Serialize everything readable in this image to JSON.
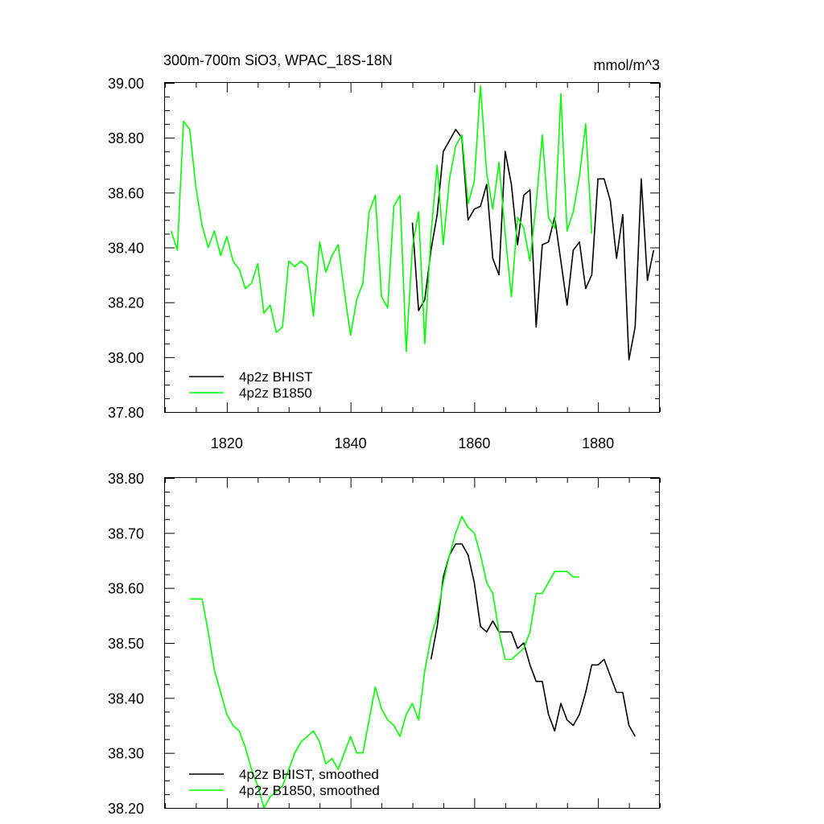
{
  "figure": {
    "title_left": "300m-700m SiO3, WPAC_18S-18N",
    "title_right": "mmol/m^3"
  },
  "colors": {
    "bhist": "#000000",
    "b1850": "#00ff00",
    "background": "#ffffff"
  },
  "chart_data": [
    {
      "type": "line",
      "title": "300m-700m SiO3, WPAC_18S-18N",
      "units": "mmol/m^3",
      "xlim": [
        1810,
        1890
      ],
      "ylim": [
        37.8,
        39.0
      ],
      "x_ticks": [
        1820,
        1840,
        1860,
        1880
      ],
      "y_ticks": [
        "37.80",
        "38.00",
        "38.20",
        "38.40",
        "38.60",
        "38.80",
        "39.00"
      ],
      "legend_position": "bottom-left",
      "series": [
        {
          "name": "4p2z BHIST",
          "color": "#000000",
          "x": [
            1850,
            1851,
            1852,
            1853,
            1854,
            1855,
            1856,
            1857,
            1858,
            1859,
            1860,
            1861,
            1862,
            1863,
            1864,
            1865,
            1866,
            1867,
            1868,
            1869,
            1870,
            1871,
            1872,
            1873,
            1874,
            1875,
            1876,
            1877,
            1878,
            1879,
            1880,
            1881,
            1882,
            1883,
            1884,
            1885,
            1886,
            1887,
            1888,
            1889
          ],
          "y": [
            38.49,
            38.17,
            38.21,
            38.39,
            38.52,
            38.75,
            38.79,
            38.83,
            38.8,
            38.5,
            38.54,
            38.55,
            38.63,
            38.36,
            38.3,
            38.75,
            38.63,
            38.41,
            38.59,
            38.61,
            38.11,
            38.41,
            38.42,
            38.51,
            38.35,
            38.19,
            38.39,
            38.42,
            38.25,
            38.3,
            38.65,
            38.65,
            38.57,
            38.36,
            38.52,
            37.99,
            38.11,
            38.65,
            38.28,
            38.39
          ]
        },
        {
          "name": "4p2z B1850",
          "color": "#00ff00",
          "x": [
            1811,
            1812,
            1813,
            1814,
            1815,
            1816,
            1817,
            1818,
            1819,
            1820,
            1821,
            1822,
            1823,
            1824,
            1825,
            1826,
            1827,
            1828,
            1829,
            1830,
            1831,
            1832,
            1833,
            1834,
            1835,
            1836,
            1837,
            1838,
            1839,
            1840,
            1841,
            1842,
            1843,
            1844,
            1845,
            1846,
            1847,
            1848,
            1849,
            1850,
            1851,
            1852,
            1853,
            1854,
            1855,
            1856,
            1857,
            1858,
            1859,
            1860,
            1861,
            1862,
            1863,
            1864,
            1865,
            1866,
            1867,
            1868,
            1869,
            1870,
            1871,
            1872,
            1873,
            1874,
            1875,
            1876,
            1877,
            1878,
            1879
          ],
          "y": [
            38.46,
            38.39,
            38.86,
            38.83,
            38.62,
            38.48,
            38.4,
            38.46,
            38.37,
            38.44,
            38.35,
            38.32,
            38.25,
            38.27,
            38.34,
            38.16,
            38.19,
            38.09,
            38.11,
            38.35,
            38.33,
            38.35,
            38.33,
            38.15,
            38.42,
            38.31,
            38.37,
            38.41,
            38.24,
            38.08,
            38.21,
            38.27,
            38.53,
            38.59,
            38.22,
            38.18,
            38.55,
            38.59,
            38.02,
            38.4,
            38.53,
            38.05,
            38.45,
            38.7,
            38.41,
            38.65,
            38.77,
            38.81,
            38.56,
            38.64,
            38.99,
            38.67,
            38.54,
            38.71,
            38.45,
            38.22,
            38.51,
            38.47,
            38.35,
            38.56,
            38.81,
            38.51,
            38.47,
            38.96,
            38.46,
            38.53,
            38.66,
            38.85,
            38.45
          ]
        }
      ]
    },
    {
      "type": "line",
      "xlim": [
        1810,
        1890
      ],
      "ylim": [
        38.2,
        38.8
      ],
      "x_ticks": [
        1820,
        1840,
        1860,
        1880
      ],
      "y_ticks": [
        "38.20",
        "38.30",
        "38.40",
        "38.50",
        "38.60",
        "38.70",
        "38.80"
      ],
      "legend_position": "bottom-left",
      "series": [
        {
          "name": "4p2z BHIST, smoothed",
          "color": "#000000",
          "x": [
            1853,
            1854,
            1855,
            1856,
            1857,
            1858,
            1859,
            1860,
            1861,
            1862,
            1863,
            1864,
            1865,
            1866,
            1867,
            1868,
            1869,
            1870,
            1871,
            1872,
            1873,
            1874,
            1875,
            1876,
            1877,
            1878,
            1879,
            1880,
            1881,
            1882,
            1883,
            1884,
            1885,
            1886
          ],
          "y": [
            38.47,
            38.53,
            38.62,
            38.66,
            38.68,
            38.68,
            38.66,
            38.61,
            38.53,
            38.52,
            38.54,
            38.52,
            38.52,
            38.52,
            38.49,
            38.5,
            38.46,
            38.43,
            38.43,
            38.37,
            38.34,
            38.39,
            38.36,
            38.35,
            38.37,
            38.41,
            38.46,
            38.46,
            38.47,
            38.44,
            38.41,
            38.41,
            38.35,
            38.33
          ]
        },
        {
          "name": "4p2z B1850, smoothed",
          "color": "#00ff00",
          "x": [
            1814,
            1815,
            1816,
            1817,
            1818,
            1819,
            1820,
            1821,
            1822,
            1823,
            1824,
            1825,
            1826,
            1827,
            1828,
            1829,
            1830,
            1831,
            1832,
            1833,
            1834,
            1835,
            1836,
            1837,
            1838,
            1839,
            1840,
            1841,
            1842,
            1843,
            1844,
            1845,
            1846,
            1847,
            1848,
            1849,
            1850,
            1851,
            1852,
            1853,
            1854,
            1855,
            1856,
            1857,
            1858,
            1859,
            1860,
            1861,
            1862,
            1863,
            1864,
            1865,
            1866,
            1867,
            1868,
            1869,
            1870,
            1871,
            1872,
            1873,
            1874,
            1875,
            1876,
            1877
          ],
          "y": [
            38.58,
            38.58,
            38.58,
            38.52,
            38.45,
            38.41,
            38.37,
            38.35,
            38.34,
            38.31,
            38.27,
            38.24,
            38.2,
            38.22,
            38.23,
            38.24,
            38.27,
            38.3,
            38.32,
            38.33,
            38.34,
            38.32,
            38.28,
            38.29,
            38.27,
            38.3,
            38.33,
            38.3,
            38.3,
            38.36,
            38.42,
            38.38,
            38.36,
            38.35,
            38.33,
            38.37,
            38.39,
            38.36,
            38.45,
            38.51,
            38.55,
            38.61,
            38.66,
            38.7,
            38.73,
            38.71,
            38.7,
            38.66,
            38.61,
            38.59,
            38.52,
            38.47,
            38.47,
            38.48,
            38.49,
            38.52,
            38.59,
            38.59,
            38.61,
            38.63,
            38.63,
            38.63,
            38.62,
            38.62
          ]
        }
      ]
    }
  ]
}
